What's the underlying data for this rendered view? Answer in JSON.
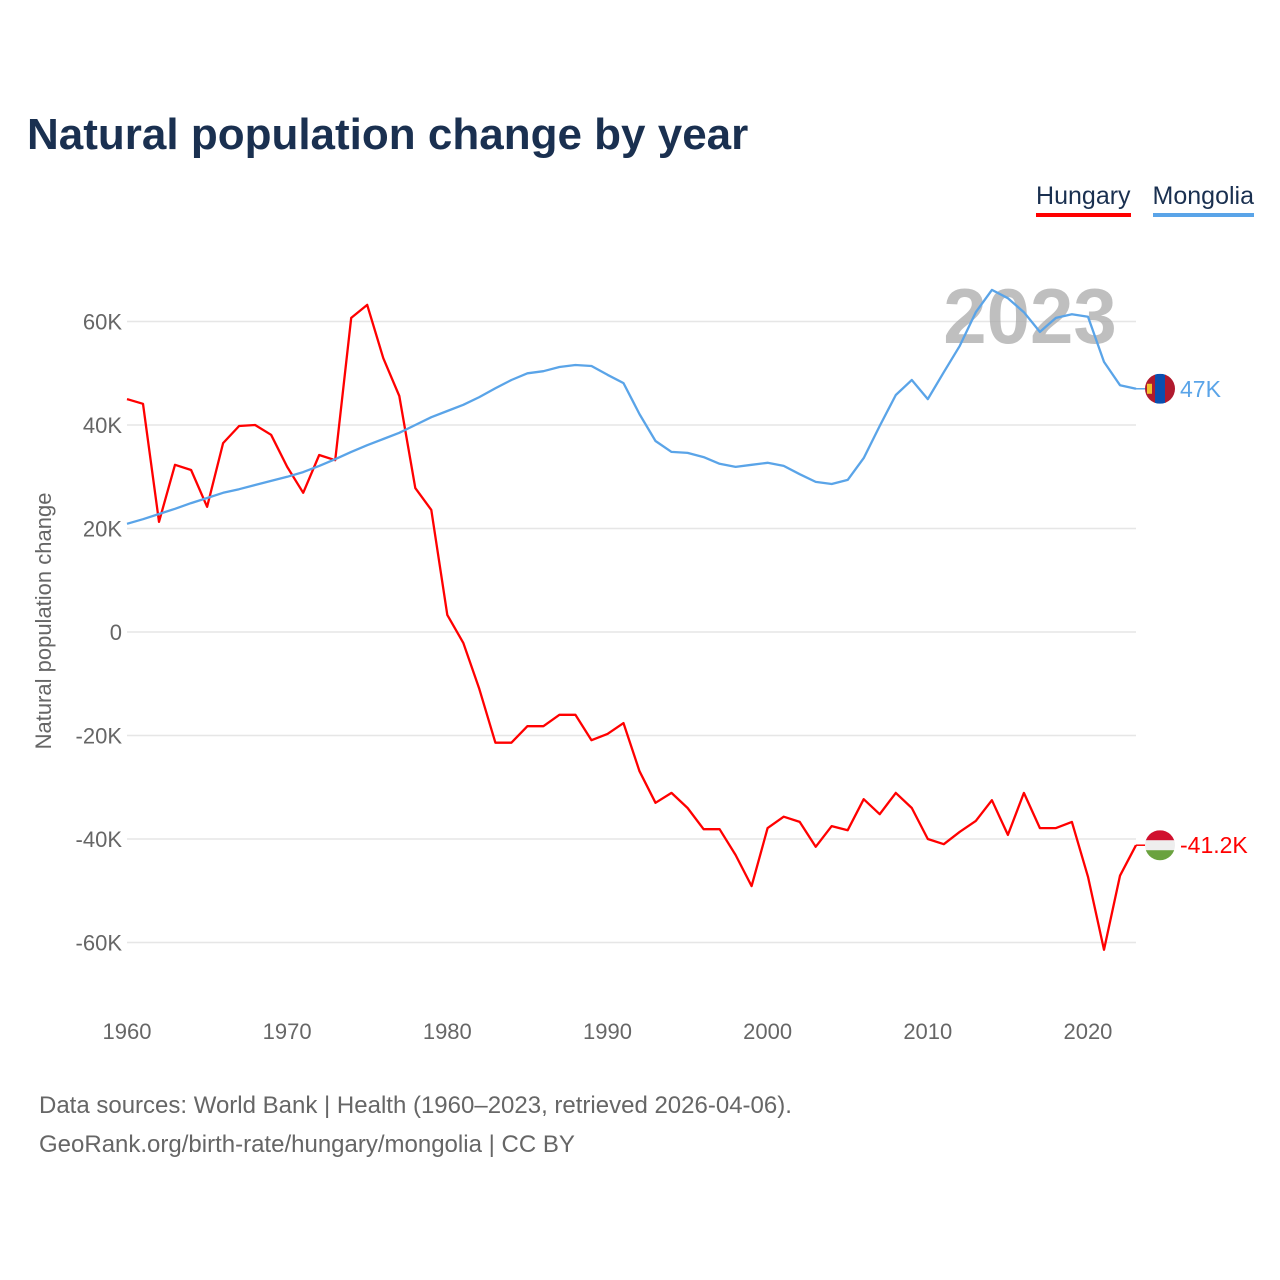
{
  "title": "Natural population change by year",
  "legend": [
    {
      "name": "Hungary",
      "color": "#ff0000"
    },
    {
      "name": "Mongolia",
      "color": "#5aa4e8"
    }
  ],
  "year_watermark": "2023",
  "source_line1": "Data sources: World Bank | Health (1960–2023, retrieved 2026-04-06).",
  "source_line2": "GeoRank.org/birth-rate/hungary/mongolia | CC BY",
  "flags": {
    "hungary": "hungary-flag-icon",
    "mongolia": "mongolia-flag-icon"
  },
  "chart_data": {
    "type": "line",
    "title": "Natural population change by year",
    "xlabel": "",
    "ylabel": "Natural population change",
    "xlim": [
      1960,
      2023
    ],
    "ylim": [
      -70000,
      70000
    ],
    "x_ticks": [
      1960,
      1970,
      1980,
      1990,
      2000,
      2010,
      2020
    ],
    "y_ticks": [
      {
        "v": 60000,
        "label": "60K"
      },
      {
        "v": 40000,
        "label": "40K"
      },
      {
        "v": 20000,
        "label": "20K"
      },
      {
        "v": 0,
        "label": "0"
      },
      {
        "v": -20000,
        "label": "-20K"
      },
      {
        "v": -40000,
        "label": "-40K"
      },
      {
        "v": -60000,
        "label": "-60K"
      }
    ],
    "grid": true,
    "legend_position": "top-right",
    "x": [
      1960,
      1961,
      1962,
      1963,
      1964,
      1965,
      1966,
      1967,
      1968,
      1969,
      1970,
      1971,
      1972,
      1973,
      1974,
      1975,
      1976,
      1977,
      1978,
      1979,
      1980,
      1981,
      1982,
      1983,
      1984,
      1985,
      1986,
      1987,
      1988,
      1989,
      1990,
      1991,
      1992,
      1993,
      1994,
      1995,
      1996,
      1997,
      1998,
      1999,
      2000,
      2001,
      2002,
      2003,
      2004,
      2005,
      2006,
      2007,
      2008,
      2009,
      2010,
      2011,
      2012,
      2013,
      2014,
      2015,
      2016,
      2017,
      2018,
      2019,
      2020,
      2021,
      2022,
      2023
    ],
    "series": [
      {
        "name": "Hungary",
        "color": "#ff0000",
        "end_label": "-41.2K",
        "values": [
          45000,
          44100,
          21300,
          32300,
          31300,
          24200,
          36500,
          39800,
          40000,
          38100,
          31900,
          26900,
          34200,
          33200,
          60700,
          63200,
          52900,
          45600,
          27800,
          23600,
          3300,
          -2100,
          -11000,
          -21400,
          -21400,
          -18200,
          -18200,
          -16000,
          -16000,
          -20900,
          -19700,
          -17600,
          -26900,
          -33000,
          -31100,
          -34000,
          -38100,
          -38100,
          -43100,
          -49100,
          -37900,
          -35700,
          -36700,
          -41500,
          -37500,
          -38300,
          -32300,
          -35200,
          -31100,
          -34000,
          -40000,
          -41000,
          -38600,
          -36500,
          -32500,
          -39200,
          -31100,
          -37900,
          -37900,
          -36700,
          -47300,
          -61400,
          -47100,
          -41200
        ]
      },
      {
        "name": "Mongolia",
        "color": "#5aa4e8",
        "end_label": "47K",
        "values": [
          20900,
          21800,
          22800,
          23800,
          24900,
          25900,
          26900,
          27600,
          28400,
          29200,
          30000,
          30900,
          32100,
          33400,
          34800,
          36100,
          37300,
          38500,
          40000,
          41500,
          42700,
          43900,
          45400,
          47100,
          48700,
          50000,
          50400,
          51200,
          51600,
          51400,
          49700,
          48100,
          42100,
          36900,
          34800,
          34600,
          33800,
          32500,
          31900,
          32300,
          32700,
          32100,
          30500,
          29000,
          28600,
          29400,
          33600,
          39800,
          45800,
          48700,
          45000,
          50200,
          55300,
          61800,
          66100,
          64500,
          61800,
          58000,
          60700,
          61400,
          60900,
          52200,
          47700,
          47000
        ]
      }
    ]
  }
}
